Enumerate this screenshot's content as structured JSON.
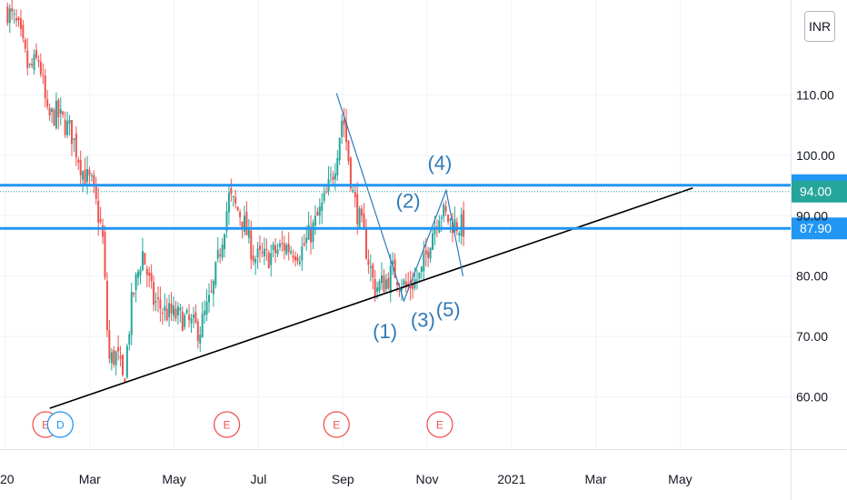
{
  "currency": "INR",
  "colors": {
    "up": "#26a69a",
    "down": "#ef5350",
    "hline": "#2196f3",
    "current": "#26a69a",
    "trendline": "#000000",
    "wave": "#2f7ab8",
    "event_e": "#ef5350",
    "event_d": "#2196f3"
  },
  "chart_data": {
    "type": "candlestick",
    "y_ticks": [
      "60.00",
      "70.00",
      "80.00",
      "90.00",
      "100.00",
      "110.00"
    ],
    "ylim": [
      53,
      128
    ],
    "x_ticks": [
      {
        "label": "20",
        "t": 0
      },
      {
        "label": "Mar",
        "t": 2
      },
      {
        "label": "May",
        "t": 4
      },
      {
        "label": "Jul",
        "t": 6
      },
      {
        "label": "Sep",
        "t": 8
      },
      {
        "label": "Nov",
        "t": 10
      },
      {
        "label": "2021",
        "t": 12
      },
      {
        "label": "Mar",
        "t": 14
      },
      {
        "label": "May",
        "t": 16
      }
    ],
    "anchors": [
      [
        0.05,
        124
      ],
      [
        0.3,
        121
      ],
      [
        0.55,
        114
      ],
      [
        0.8,
        116
      ],
      [
        1.0,
        106
      ],
      [
        1.2,
        107
      ],
      [
        1.55,
        104
      ],
      [
        1.85,
        97
      ],
      [
        2.05,
        95
      ],
      [
        2.3,
        87
      ],
      [
        2.45,
        66
      ],
      [
        2.65,
        67
      ],
      [
        2.8,
        62
      ],
      [
        3.0,
        76
      ],
      [
        3.25,
        84
      ],
      [
        3.5,
        76
      ],
      [
        3.8,
        74
      ],
      [
        4.2,
        73
      ],
      [
        4.6,
        71
      ],
      [
        4.9,
        77
      ],
      [
        5.15,
        87
      ],
      [
        5.3,
        93
      ],
      [
        5.6,
        90
      ],
      [
        5.9,
        83
      ],
      [
        6.2,
        83
      ],
      [
        6.6,
        85
      ],
      [
        7.0,
        84
      ],
      [
        7.3,
        88
      ],
      [
        7.6,
        93
      ],
      [
        7.8,
        98
      ],
      [
        8.0,
        107
      ],
      [
        8.25,
        93
      ],
      [
        8.45,
        88
      ],
      [
        8.75,
        78
      ],
      [
        9.0,
        79
      ],
      [
        9.2,
        81
      ],
      [
        9.5,
        78
      ],
      [
        9.85,
        80
      ],
      [
        10.1,
        87
      ],
      [
        10.3,
        91
      ],
      [
        10.55,
        89
      ],
      [
        10.9,
        88
      ]
    ],
    "horizontal_levels": [
      {
        "price": 95.05,
        "label": "95.05"
      },
      {
        "price": 87.9,
        "label": "87.90"
      }
    ],
    "current_price": {
      "price": 94.0,
      "label": "94.00"
    },
    "trendline": {
      "from": [
        1.05,
        58.1
      ],
      "to": [
        16.3,
        94.6
      ]
    },
    "wave_lines": [
      [
        [
          7.85,
          110.3
        ],
        [
          9.45,
          75.9
        ],
        [
          10.45,
          94.2
        ],
        [
          10.85,
          80.0
        ]
      ]
    ],
    "wave_labels": [
      {
        "text": "(1)",
        "t": 9.0,
        "price": 69.7
      },
      {
        "text": "(2)",
        "t": 9.55,
        "price": 91.3
      },
      {
        "text": "(3)",
        "t": 9.9,
        "price": 71.6
      },
      {
        "text": "(4)",
        "t": 10.3,
        "price": 97.6
      },
      {
        "text": "(5)",
        "t": 10.5,
        "price": 73.3
      }
    ],
    "events": [
      {
        "t": 0.95,
        "letter": "E",
        "kind": "earnings"
      },
      {
        "t": 1.3,
        "letter": "D",
        "kind": "dividend"
      },
      {
        "t": 5.25,
        "letter": "E",
        "kind": "earnings"
      },
      {
        "t": 7.85,
        "letter": "E",
        "kind": "earnings"
      },
      {
        "t": 10.3,
        "letter": "E",
        "kind": "earnings"
      }
    ]
  }
}
